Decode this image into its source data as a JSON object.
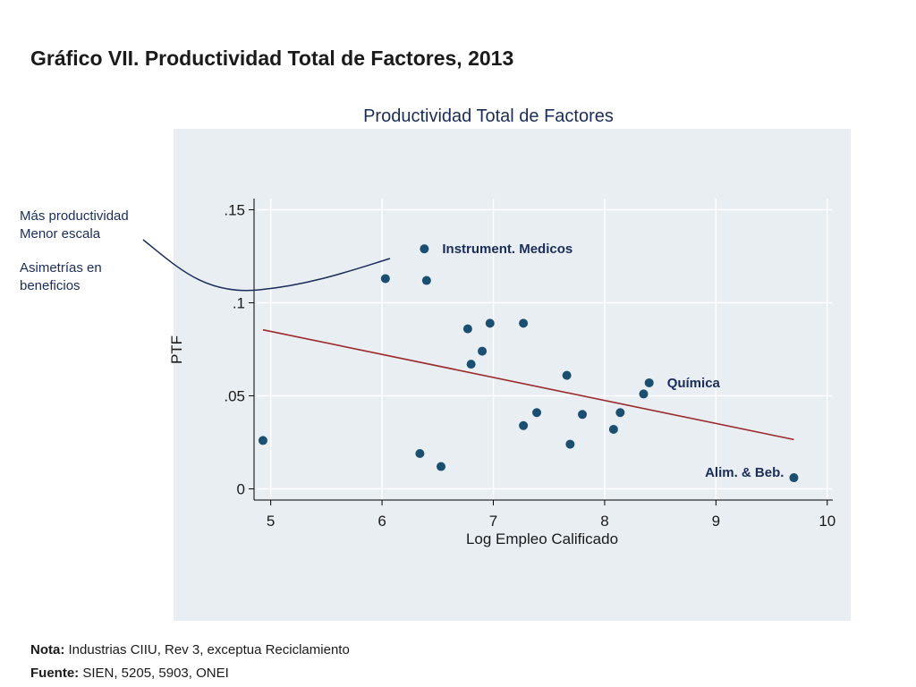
{
  "slide": {
    "title": "Gráfico VII. Productividad Total de Factores, 2013"
  },
  "annotations": {
    "line1": "Más productividad",
    "line2": "Menor escala",
    "line3": "Asimetrías en",
    "line4": "beneficios"
  },
  "footnotes": {
    "note_label": "Nota:",
    "note_text": " Industrias CIIU, Rev 3, exceptua Reciclamiento",
    "source_label": "Fuente:",
    "source_text": " SIEN, 5205, 5903, ONEI"
  },
  "colors": {
    "point": "#1b4f72",
    "fit_line": "#9b2a2a",
    "grid": "#ffffff",
    "axis": "#000000",
    "label": "#1a2d5a",
    "panel": "#e8eef2"
  },
  "chart_data": {
    "type": "scatter",
    "title": "Productividad Total de Factores",
    "xlabel": "Log Empleo Calificado",
    "ylabel": "PTF",
    "xlim": [
      4.85,
      10.05
    ],
    "ylim": [
      -0.006,
      0.156
    ],
    "xticks": [
      5,
      6,
      7,
      8,
      9,
      10
    ],
    "xtick_labels": [
      "5",
      "6",
      "7",
      "8",
      "9",
      "10"
    ],
    "yticks": [
      0,
      0.05,
      0.1,
      0.15
    ],
    "ytick_labels": [
      "0",
      ".05",
      ".1",
      ".15"
    ],
    "grid": true,
    "points": [
      {
        "x": 4.93,
        "y": 0.026
      },
      {
        "x": 6.03,
        "y": 0.113
      },
      {
        "x": 6.34,
        "y": 0.019
      },
      {
        "x": 6.38,
        "y": 0.129,
        "label": "Instrument. Medicos"
      },
      {
        "x": 6.4,
        "y": 0.112
      },
      {
        "x": 6.53,
        "y": 0.012
      },
      {
        "x": 6.77,
        "y": 0.086
      },
      {
        "x": 6.8,
        "y": 0.067
      },
      {
        "x": 6.9,
        "y": 0.074
      },
      {
        "x": 6.97,
        "y": 0.089
      },
      {
        "x": 7.27,
        "y": 0.089
      },
      {
        "x": 7.27,
        "y": 0.034
      },
      {
        "x": 7.39,
        "y": 0.041
      },
      {
        "x": 7.66,
        "y": 0.061
      },
      {
        "x": 7.69,
        "y": 0.024
      },
      {
        "x": 7.8,
        "y": 0.04
      },
      {
        "x": 8.08,
        "y": 0.032
      },
      {
        "x": 8.14,
        "y": 0.041
      },
      {
        "x": 8.35,
        "y": 0.051
      },
      {
        "x": 8.4,
        "y": 0.057,
        "label": "Química"
      },
      {
        "x": 9.7,
        "y": 0.006,
        "label": "Alim. & Beb."
      }
    ],
    "fit_line": {
      "x": [
        4.93,
        9.7
      ],
      "y": [
        0.0855,
        0.0265
      ]
    }
  }
}
